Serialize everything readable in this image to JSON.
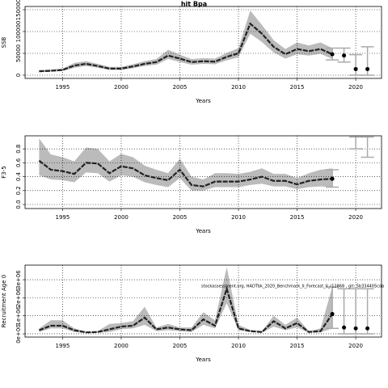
{
  "chart_data": [
    {
      "type": "line",
      "title": "hit Bpa",
      "ylabel": "SSB",
      "xlabel": "Years",
      "xlim": [
        1991.8,
        2022.2
      ],
      "xticks": [
        1995,
        2000,
        2005,
        2010,
        2015,
        2020
      ],
      "ylim": [
        -7400,
        157400
      ],
      "yticks": [
        0,
        50000,
        100000,
        150000
      ],
      "grid": true,
      "line_color": "#222222",
      "band_color": "#bbbbbb",
      "point_color": "#000000",
      "bar_color": "#aaaaaa",
      "x": [
        1993,
        1994,
        1995,
        1996,
        1997,
        1998,
        1999,
        2000,
        2001,
        2002,
        2003,
        2004,
        2005,
        2006,
        2007,
        2008,
        2009,
        2010,
        2011,
        2012,
        2013,
        2014,
        2015,
        2016,
        2017,
        2018
      ],
      "values": [
        9000,
        10000,
        12000,
        22000,
        26000,
        21000,
        15000,
        15000,
        20000,
        26000,
        30000,
        45000,
        38000,
        30000,
        32000,
        31000,
        42000,
        50000,
        118000,
        95000,
        65000,
        48000,
        60000,
        55000,
        60000,
        48000
      ],
      "lower": [
        7000,
        8000,
        9500,
        17000,
        21000,
        17000,
        12000,
        12000,
        16000,
        21000,
        24000,
        37000,
        30000,
        24000,
        26000,
        25000,
        34000,
        41000,
        95000,
        76000,
        52000,
        38000,
        48000,
        45000,
        49000,
        37000
      ],
      "upper": [
        11500,
        13000,
        15000,
        28000,
        32000,
        26000,
        19000,
        19000,
        25000,
        32000,
        37000,
        58000,
        47000,
        37000,
        39000,
        38000,
        51000,
        62000,
        148000,
        115000,
        80000,
        60000,
        75000,
        68000,
        75000,
        62000
      ],
      "points": {
        "x": [
          2018,
          2019,
          2020,
          2021
        ],
        "values": [
          48000,
          45000,
          14000,
          14000
        ],
        "lower": [
          35000,
          30000,
          0,
          0
        ],
        "upper": [
          62000,
          62000,
          47000,
          65000
        ]
      }
    },
    {
      "type": "line",
      "ylabel": "F3-5",
      "xlabel": "Years",
      "xlim": [
        1991.8,
        2022.2
      ],
      "xticks": [
        1995,
        2000,
        2005,
        2010,
        2015,
        2020
      ],
      "ylim": [
        -0.058,
        0.988
      ],
      "yticks": [
        {
          "value": 0,
          "label": "0.0"
        },
        0.2,
        0.4,
        0.6,
        0.8
      ],
      "grid": true,
      "line_color": "#222222",
      "band_color": "#bbbbbb",
      "point_color": "#000000",
      "bar_color": "#aaaaaa",
      "x": [
        1993,
        1994,
        1995,
        1996,
        1997,
        1998,
        1999,
        2000,
        2001,
        2002,
        2003,
        2004,
        2005,
        2006,
        2007,
        2008,
        2009,
        2010,
        2011,
        2012,
        2013,
        2014,
        2015,
        2016,
        2017,
        2018
      ],
      "values": [
        0.63,
        0.5,
        0.48,
        0.44,
        0.6,
        0.59,
        0.45,
        0.55,
        0.52,
        0.42,
        0.38,
        0.35,
        0.5,
        0.28,
        0.26,
        0.33,
        0.33,
        0.33,
        0.36,
        0.4,
        0.34,
        0.34,
        0.29,
        0.34,
        0.36,
        0.37
      ],
      "lower": [
        0.42,
        0.36,
        0.35,
        0.32,
        0.46,
        0.45,
        0.33,
        0.42,
        0.4,
        0.32,
        0.28,
        0.25,
        0.38,
        0.2,
        0.2,
        0.25,
        0.25,
        0.25,
        0.28,
        0.3,
        0.26,
        0.26,
        0.22,
        0.25,
        0.26,
        0.25
      ],
      "upper": [
        0.95,
        0.72,
        0.68,
        0.62,
        0.82,
        0.8,
        0.62,
        0.73,
        0.68,
        0.56,
        0.5,
        0.45,
        0.66,
        0.4,
        0.36,
        0.45,
        0.45,
        0.44,
        0.47,
        0.52,
        0.44,
        0.44,
        0.38,
        0.45,
        0.5,
        0.52
      ],
      "points": {
        "x": [
          2018,
          2020,
          2021
        ],
        "values": [
          0.37,
          null,
          null
        ],
        "lower": [
          0.25,
          0.8,
          0.68
        ],
        "upper": [
          0.5,
          0.97,
          0.97
        ]
      }
    },
    {
      "type": "line",
      "ylabel": "Recruitment Age 0",
      "xlabel": "Years",
      "xlim": [
        1991.8,
        2022.2
      ],
      "xticks": [
        1995,
        2000,
        2005,
        2010,
        2015,
        2020
      ],
      "ylim": [
        -180000,
        3810000
      ],
      "yticks": [
        {
          "value": 0,
          "label": "0e+00"
        },
        {
          "value": 1000000,
          "label": "1e+06"
        },
        {
          "value": 2000000,
          "label": "2e+06"
        },
        {
          "value": 3000000,
          "label": "3e+06"
        }
      ],
      "grid": true,
      "line_color": "#222222",
      "band_color": "#bbbbbb",
      "point_color": "#000000",
      "bar_color": "#aaaaaa",
      "annotation": "stockassessment.org, HADTbk_2020_Benchmark_II_Forecast_II_r12868 , git: 5b334405cda",
      "x": [
        1993,
        1994,
        1995,
        1996,
        1997,
        1998,
        1999,
        2000,
        2001,
        2002,
        2003,
        2004,
        2005,
        2006,
        2007,
        2008,
        2009,
        2010,
        2011,
        2012,
        2013,
        2014,
        2015,
        2016,
        2017,
        2018
      ],
      "values": [
        200000,
        450000,
        450000,
        200000,
        80000,
        100000,
        250000,
        400000,
        450000,
        900000,
        250000,
        350000,
        250000,
        200000,
        800000,
        450000,
        2500000,
        300000,
        150000,
        100000,
        700000,
        300000,
        600000,
        100000,
        150000,
        1100000
      ],
      "lower": [
        100000,
        300000,
        300000,
        100000,
        50000,
        60000,
        100000,
        250000,
        300000,
        500000,
        150000,
        200000,
        150000,
        100000,
        500000,
        300000,
        1700000,
        200000,
        100000,
        60000,
        400000,
        200000,
        350000,
        60000,
        80000,
        300000
      ],
      "upper": [
        300000,
        750000,
        750000,
        300000,
        120000,
        150000,
        550000,
        600000,
        700000,
        1500000,
        350000,
        550000,
        350000,
        350000,
        1200000,
        750000,
        3700000,
        500000,
        220000,
        150000,
        1000000,
        500000,
        900000,
        150000,
        300000,
        2600000
      ],
      "points": {
        "x": [
          2018,
          2019,
          2020,
          2021
        ],
        "values": [
          1100000,
          350000,
          300000,
          300000
        ],
        "lower": [
          300000,
          0,
          0,
          0
        ],
        "upper": [
          2600000,
          2500000,
          2500000,
          2500000
        ]
      }
    }
  ]
}
